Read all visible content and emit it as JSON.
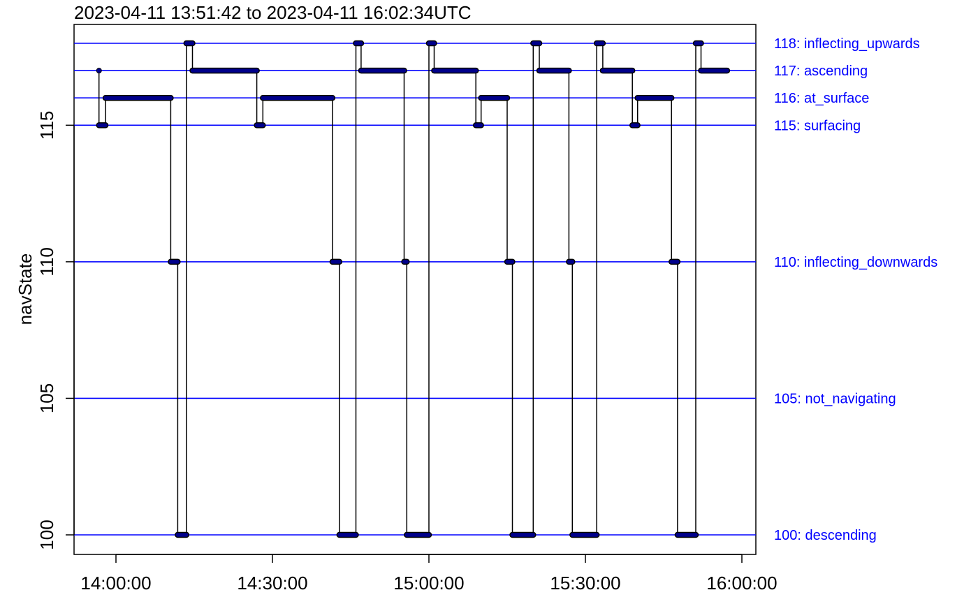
{
  "chart_data": {
    "type": "line",
    "title": "2023-04-11 13:51:42 to 2023-04-11 16:02:34UTC",
    "xlabel": "",
    "ylabel": "navState",
    "x_ticks": [
      "14:00:00",
      "14:30:00",
      "15:00:00",
      "15:30:00",
      "16:00:00"
    ],
    "x_range": [
      "2023-04-11 13:51:42",
      "2023-04-11 16:02:34"
    ],
    "y_ticks": [
      100,
      105,
      110,
      115
    ],
    "ylim": [
      99.2,
      118.7
    ],
    "grid": false,
    "reference_lines": [
      {
        "value": 118,
        "label": "118: inflecting_upwards"
      },
      {
        "value": 117,
        "label": "117: ascending"
      },
      {
        "value": 116,
        "label": "116: at_surface"
      },
      {
        "value": 115,
        "label": "115: surfacing"
      },
      {
        "value": 110,
        "label": "110: inflecting_downwards"
      },
      {
        "value": 105,
        "label": "105: not_navigating"
      },
      {
        "value": 100,
        "label": "100: descending"
      }
    ],
    "series": [
      {
        "segments": [
          {
            "start": "13:56:45",
            "end": "13:56:45",
            "state": 117
          },
          {
            "start": "13:56:45",
            "end": "13:58:00",
            "state": 115
          },
          {
            "start": "13:58:00",
            "end": "14:10:30",
            "state": 116
          },
          {
            "start": "14:10:30",
            "end": "14:11:50",
            "state": 110
          },
          {
            "start": "14:11:50",
            "end": "14:13:30",
            "state": 100
          },
          {
            "start": "14:13:30",
            "end": "14:14:40",
            "state": 118
          },
          {
            "start": "14:14:40",
            "end": "14:27:00",
            "state": 117
          },
          {
            "start": "14:27:00",
            "end": "14:28:10",
            "state": 115
          },
          {
            "start": "14:28:10",
            "end": "14:41:30",
            "state": 116
          },
          {
            "start": "14:41:30",
            "end": "14:42:50",
            "state": 110
          },
          {
            "start": "14:42:50",
            "end": "14:46:00",
            "state": 100
          },
          {
            "start": "14:46:00",
            "end": "14:47:00",
            "state": 118
          },
          {
            "start": "14:47:00",
            "end": "14:55:15",
            "state": 117
          },
          {
            "start": "14:55:15",
            "end": "14:55:45",
            "state": 110
          },
          {
            "start": "14:55:45",
            "end": "15:00:00",
            "state": 100
          },
          {
            "start": "15:00:00",
            "end": "15:01:00",
            "state": 118
          },
          {
            "start": "15:01:00",
            "end": "15:09:00",
            "state": 117
          },
          {
            "start": "15:09:00",
            "end": "15:10:00",
            "state": 115
          },
          {
            "start": "15:10:00",
            "end": "15:15:00",
            "state": 116
          },
          {
            "start": "15:15:00",
            "end": "15:16:00",
            "state": 110
          },
          {
            "start": "15:16:00",
            "end": "15:20:00",
            "state": 100
          },
          {
            "start": "15:20:00",
            "end": "15:21:10",
            "state": 118
          },
          {
            "start": "15:21:10",
            "end": "15:26:50",
            "state": 117
          },
          {
            "start": "15:26:50",
            "end": "15:27:30",
            "state": 110
          },
          {
            "start": "15:27:30",
            "end": "15:32:10",
            "state": 100
          },
          {
            "start": "15:32:10",
            "end": "15:33:20",
            "state": 118
          },
          {
            "start": "15:33:20",
            "end": "15:39:00",
            "state": 117
          },
          {
            "start": "15:39:00",
            "end": "15:40:00",
            "state": 115
          },
          {
            "start": "15:40:00",
            "end": "15:46:30",
            "state": 116
          },
          {
            "start": "15:46:30",
            "end": "15:47:40",
            "state": 110
          },
          {
            "start": "15:47:40",
            "end": "15:51:10",
            "state": 100
          },
          {
            "start": "15:51:10",
            "end": "15:52:10",
            "state": 118
          },
          {
            "start": "15:52:10",
            "end": "15:57:10",
            "state": 117
          }
        ]
      }
    ]
  },
  "colors": {
    "reference_line": "#0000ff",
    "reference_label": "#0000ff",
    "data_line": "#000000",
    "marker_outline": "#000000",
    "marker_fill": "#00008b",
    "axis": "#000000"
  }
}
